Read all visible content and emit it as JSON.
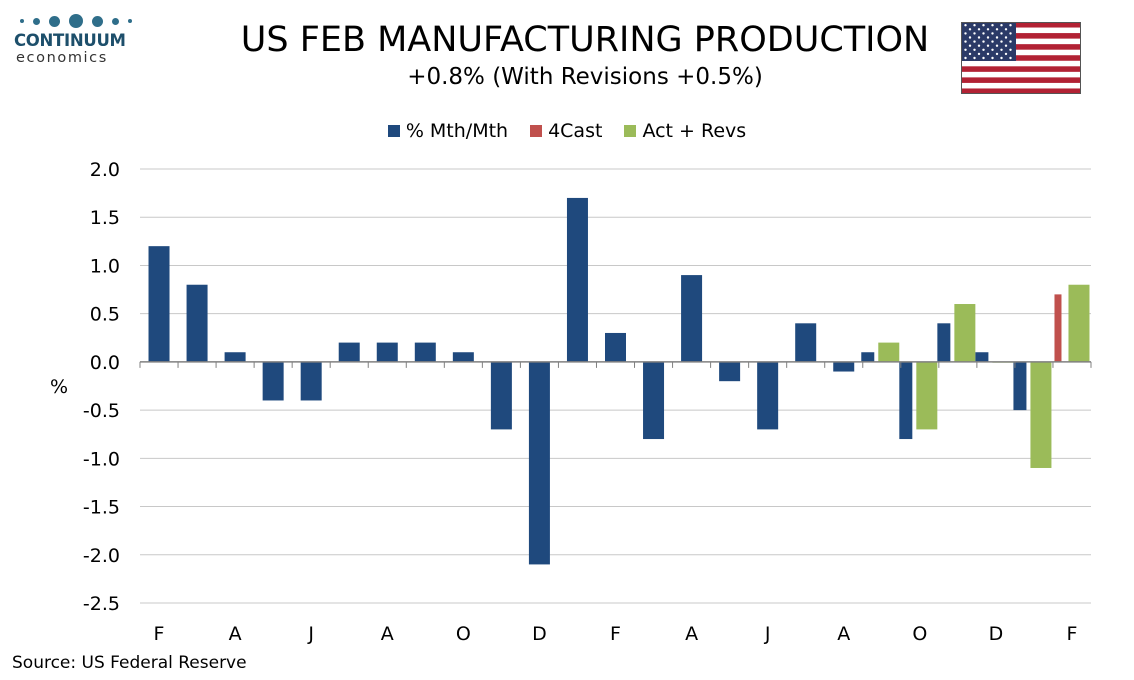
{
  "brand": {
    "name": "CONTINUUM",
    "tagline": "economics",
    "color": "#2f6e8a"
  },
  "title": "US FEB MANUFACTURING PRODUCTION",
  "subtitle": "+0.8% (With Revisions +0.5%)",
  "flag": "us-flag",
  "source": "Source: US Federal Reserve",
  "chart_data": {
    "type": "bar",
    "ylabel": "%",
    "ylim": [
      -2.5,
      2.0
    ],
    "yticks": [
      -2.5,
      -2.0,
      -1.5,
      -1.0,
      -0.5,
      0.0,
      0.5,
      1.0,
      1.5,
      2.0
    ],
    "ytick_labels": [
      "-2.5",
      "-2.0",
      "-1.5",
      "-1.0",
      "-0.5",
      "0.0",
      "0.5",
      "1.0",
      "1.5",
      "2.0"
    ],
    "grid": "horizontal",
    "legend_position": "top-center",
    "xtick_labels": [
      "F",
      "A",
      "J",
      "A",
      "O",
      "D",
      "F",
      "A",
      "J",
      "A",
      "O",
      "D",
      "F"
    ],
    "xtick_label_every": 2,
    "periods": 25,
    "series": [
      {
        "name": "% Mth/Mth",
        "color": "#1f497d",
        "values": [
          1.2,
          0.8,
          0.1,
          -0.4,
          -0.4,
          0.2,
          0.2,
          0.2,
          0.1,
          -0.7,
          -2.1,
          1.7,
          0.3,
          -0.8,
          0.9,
          -0.2,
          -0.7,
          0.4,
          -0.1,
          0.1,
          -0.8,
          0.4,
          0.1,
          -0.5,
          null
        ]
      },
      {
        "name": "4Cast",
        "color": "#c0504d",
        "values": [
          null,
          null,
          null,
          null,
          null,
          null,
          null,
          null,
          null,
          null,
          null,
          null,
          null,
          null,
          null,
          null,
          null,
          null,
          null,
          null,
          null,
          null,
          null,
          null,
          0.7
        ]
      },
      {
        "name": "Act + Revs",
        "color": "#9bbb59",
        "values": [
          null,
          null,
          null,
          null,
          null,
          null,
          null,
          null,
          null,
          null,
          null,
          null,
          null,
          null,
          null,
          null,
          null,
          null,
          null,
          0.2,
          -0.7,
          0.6,
          0.0,
          -1.1,
          0.8
        ]
      }
    ]
  }
}
